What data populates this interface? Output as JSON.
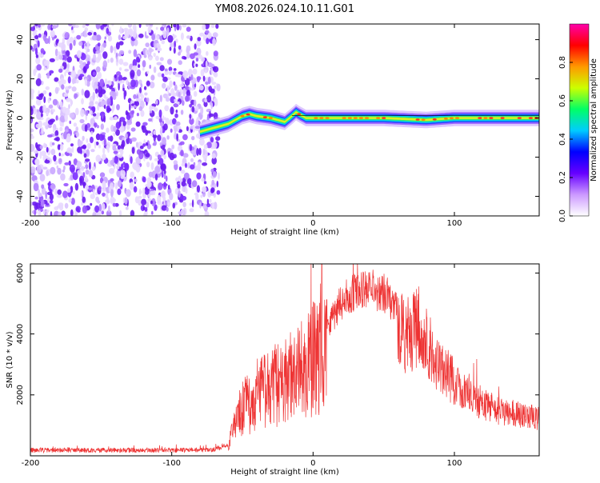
{
  "chart_data": [
    {
      "type": "heatmap",
      "title": "YM08.2026.024.10.11.G01",
      "xlabel": "Height of straight line (km)",
      "ylabel": "Frequency (Hz)",
      "xlim": [
        -200,
        160
      ],
      "ylim": [
        -50,
        48
      ],
      "xticks": [
        -200,
        -100,
        0,
        100
      ],
      "yticks": [
        -40,
        -20,
        0,
        20,
        40
      ],
      "noise_region_x": [
        -200,
        -70
      ],
      "trace": {
        "x": [
          -80,
          -75,
          -70,
          -60,
          -50,
          -45,
          -40,
          -30,
          -20,
          -15,
          -12,
          -10,
          -5,
          0,
          20,
          50,
          80,
          100,
          130,
          160
        ],
        "y": [
          -7,
          -6,
          -5,
          -3,
          1,
          2,
          1,
          0,
          -2,
          1,
          3,
          2,
          0,
          0,
          0,
          0,
          -1,
          0,
          0,
          0
        ]
      },
      "colorbar": {
        "label": "Normalized spectral amplitude",
        "range": [
          0.0,
          1.0
        ],
        "ticks": [
          "0.0",
          "0.2",
          "0.4",
          "0.6",
          "0.8"
        ],
        "colors": [
          "#ffffff",
          "#cc99ff",
          "#6600ff",
          "#0000ff",
          "#00ccff",
          "#00ff66",
          "#ccff00",
          "#ff9900",
          "#ff0000",
          "#ff00aa"
        ]
      }
    },
    {
      "type": "line",
      "xlabel": "Height of straight line (km)",
      "ylabel": "SNR (10 * v/v)",
      "xlim": [
        -200,
        160
      ],
      "ylim": [
        0,
        6300
      ],
      "xticks": [
        -200,
        -100,
        0,
        100
      ],
      "yticks": [
        2000,
        4000,
        6000
      ],
      "color": "#ee3333",
      "envelope": {
        "x": [
          -200,
          -100,
          -70,
          -60,
          -55,
          -50,
          -40,
          -30,
          -20,
          -10,
          -5,
          0,
          10,
          20,
          30,
          40,
          50,
          55,
          60,
          65,
          70,
          75,
          80,
          90,
          100,
          110,
          120,
          130,
          140,
          150,
          160
        ],
        "y": [
          200,
          200,
          220,
          400,
          1200,
          1700,
          2200,
          2500,
          2700,
          3000,
          3200,
          3500,
          4400,
          5200,
          5500,
          5600,
          5500,
          5200,
          4800,
          4200,
          4300,
          4500,
          4000,
          3000,
          2600,
          2200,
          1800,
          1600,
          1500,
          1400,
          1300
        ]
      }
    }
  ]
}
